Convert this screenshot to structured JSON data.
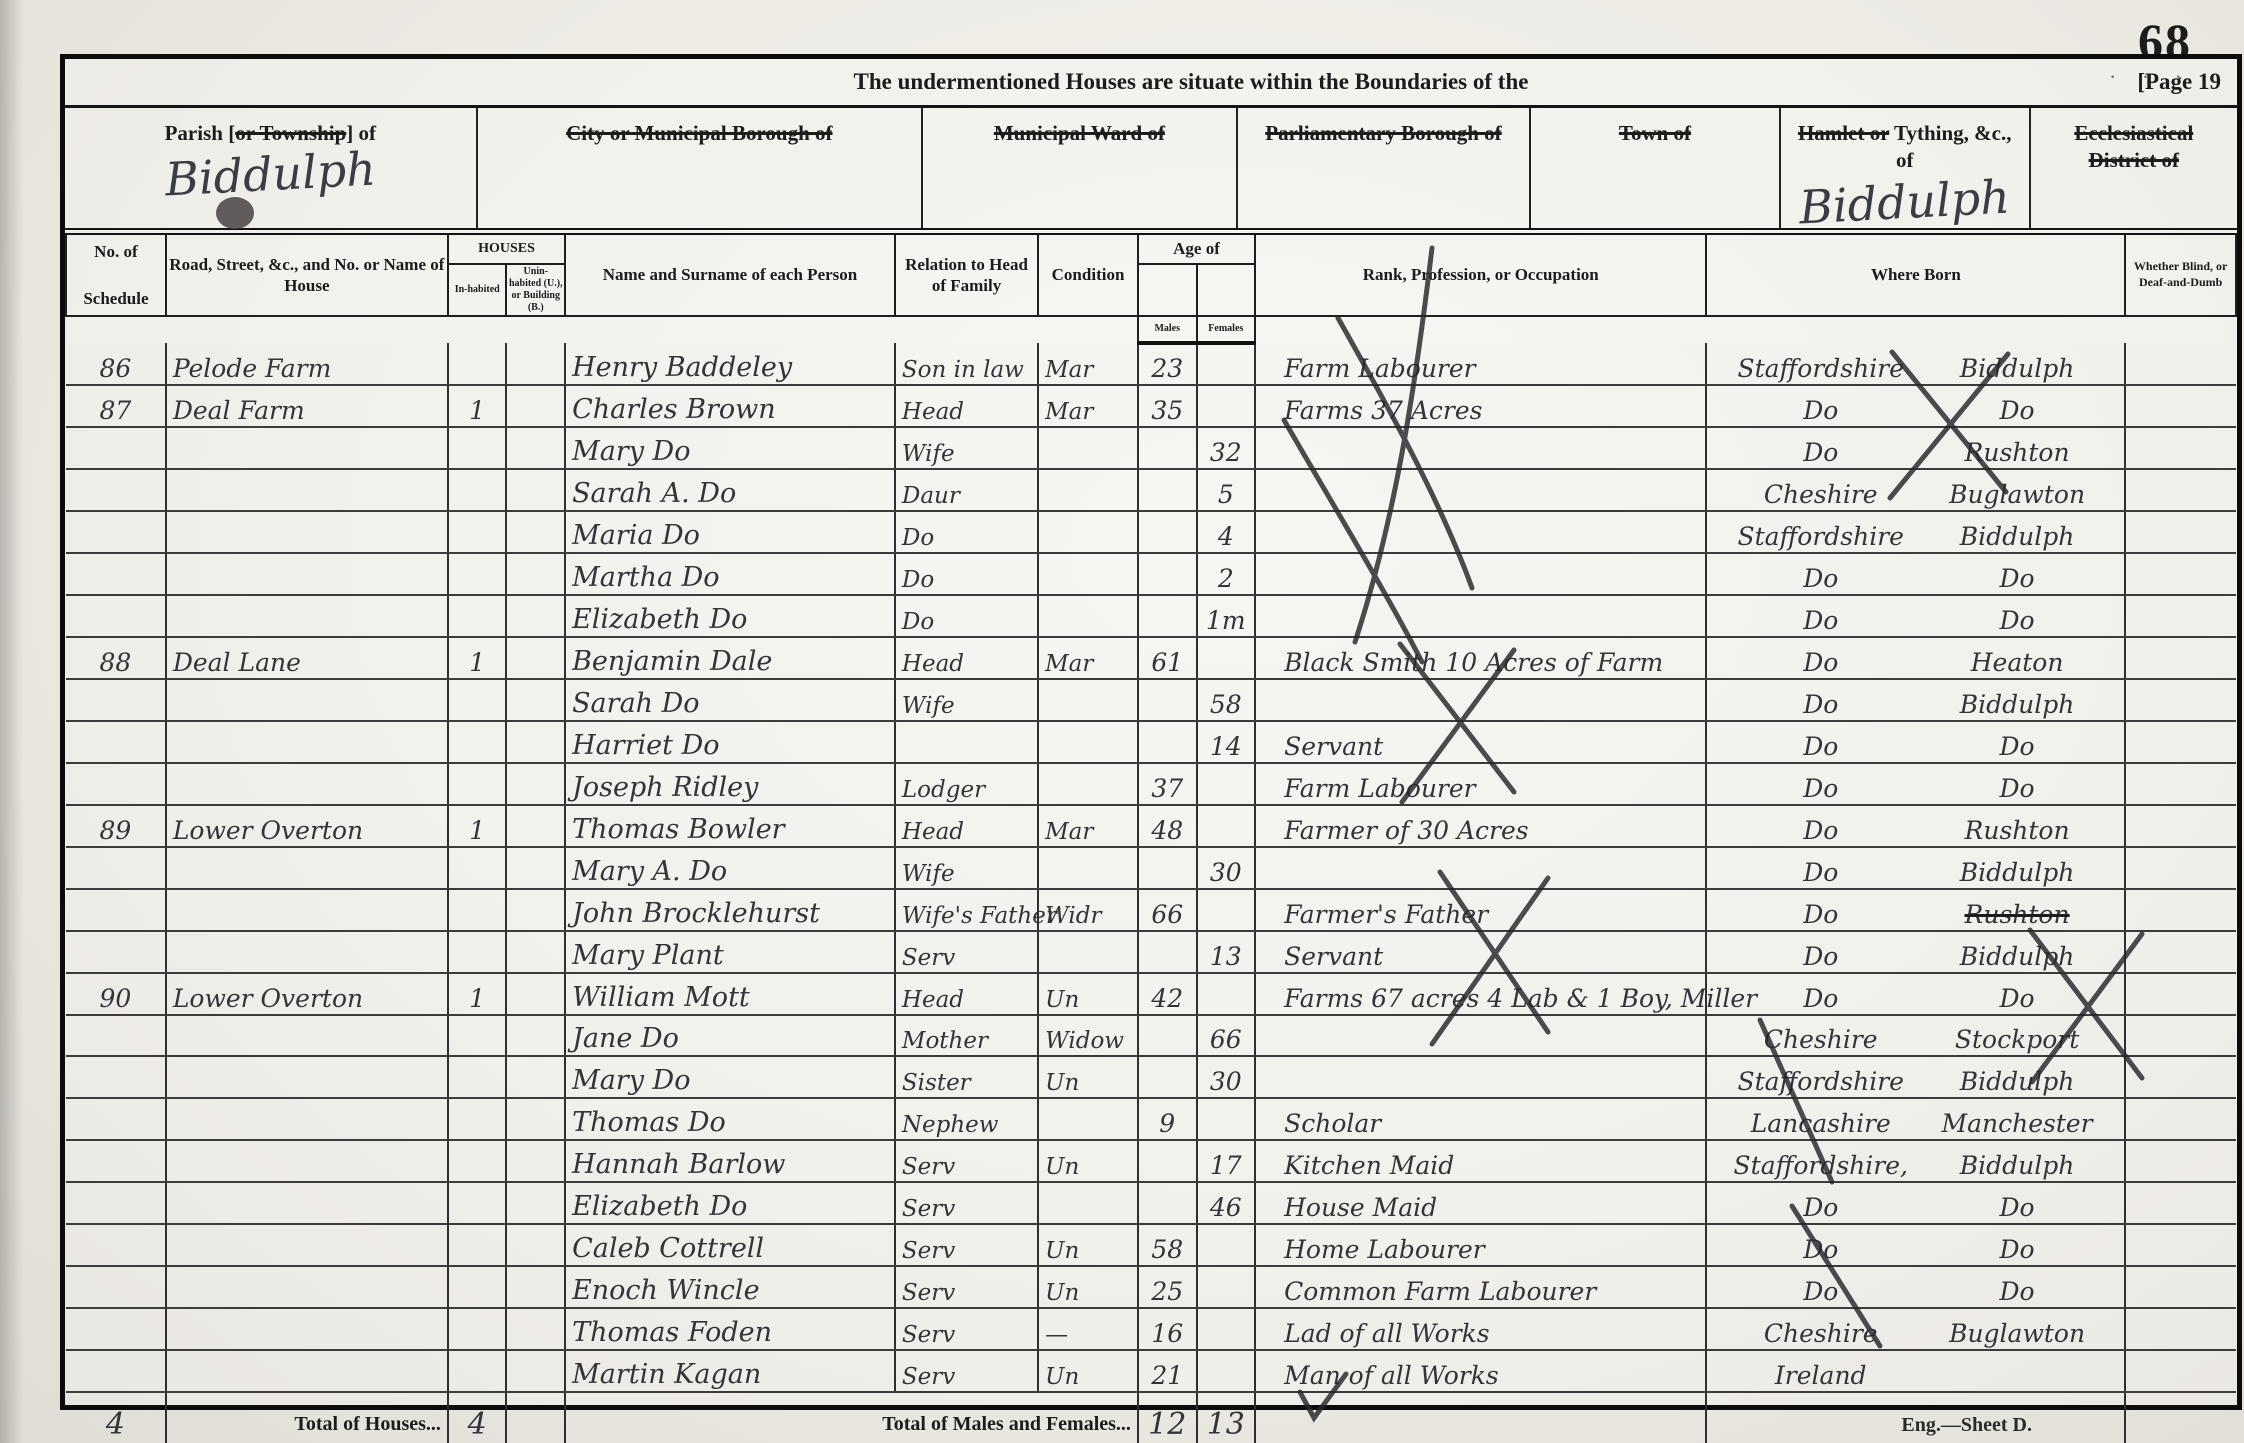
{
  "page": {
    "page_number": "68",
    "dots": "· · ·",
    "page_label": "[Page 19",
    "boundary_heading": "The undermentioned Houses are situate within the Boundaries of the",
    "footer": "Eng.—Sheet D."
  },
  "location_header": {
    "columns": [
      {
        "parts": [
          {
            "text": "Parish [",
            "struck": false
          },
          {
            "text": "or Township",
            "struck": true
          },
          {
            "text": "] of",
            "struck": false
          }
        ],
        "value": "Biddulph"
      },
      {
        "parts": [
          {
            "text": "City or Municipal Borough of",
            "struck": true
          }
        ],
        "value": ""
      },
      {
        "parts": [
          {
            "text": "Municipal Ward of",
            "struck": true
          }
        ],
        "value": ""
      },
      {
        "parts": [
          {
            "text": "Parliamentary Borough of",
            "struck": true
          }
        ],
        "value": ""
      },
      {
        "parts": [
          {
            "text": "Town of",
            "struck": true
          }
        ],
        "value": ""
      },
      {
        "parts": [
          {
            "text": "Hamlet or",
            "struck": true
          },
          {
            "text": " Tything, &c., of",
            "struck": false
          }
        ],
        "value": "Biddulph"
      },
      {
        "parts": [
          {
            "text": "Ecclesiastical District of",
            "struck": true
          }
        ],
        "value": ""
      }
    ]
  },
  "headers": {
    "schedule_top": "No. of",
    "schedule_bottom": "Schedule",
    "road": "Road, Street, &c., and No. or Name of House",
    "houses_group": "HOUSES",
    "inhabited": "In-habited",
    "uninhabited": "Unin-habited (U.), or Building (B.)",
    "name": "Name and Surname of each Person",
    "relation": "Relation to Head of Family",
    "condition": "Condition",
    "age_group": "Age of",
    "males": "Males",
    "females": "Females",
    "occupation": "Rank, Profession, or Occupation",
    "born": "Where Born",
    "blind": "Whether Blind, or Deaf-and-Dumb"
  },
  "rows": [
    {
      "sched": "86",
      "road": "Pelode Farm",
      "inh": "",
      "name": "Henry Baddeley",
      "rel": "Son in law",
      "cond": "Mar",
      "m": "23",
      "f": "",
      "occ": "Farm Labourer",
      "bc": "Staffordshire",
      "bp": "Biddulph"
    },
    {
      "sched": "87",
      "road": "Deal Farm",
      "inh": "1",
      "name": "Charles Brown",
      "rel": "Head",
      "cond": "Mar",
      "m": "35",
      "f": "",
      "occ": "Farms 37 Acres",
      "bc": "Do",
      "bp": "Do"
    },
    {
      "sched": "",
      "road": "",
      "inh": "",
      "name": "Mary Do",
      "rel": "Wife",
      "cond": "",
      "m": "",
      "f": "32",
      "occ": "",
      "bc": "Do",
      "bp": "Rushton"
    },
    {
      "sched": "",
      "road": "",
      "inh": "",
      "name": "Sarah A. Do",
      "rel": "Daur",
      "cond": "",
      "m": "",
      "f": "5",
      "occ": "",
      "bc": "Cheshire",
      "bp": "Buglawton"
    },
    {
      "sched": "",
      "road": "",
      "inh": "",
      "name": "Maria Do",
      "rel": "Do",
      "cond": "",
      "m": "",
      "f": "4",
      "occ": "",
      "bc": "Staffordshire",
      "bp": "Biddulph"
    },
    {
      "sched": "",
      "road": "",
      "inh": "",
      "name": "Martha Do",
      "rel": "Do",
      "cond": "",
      "m": "",
      "f": "2",
      "occ": "",
      "bc": "Do",
      "bp": "Do"
    },
    {
      "sched": "",
      "road": "",
      "inh": "",
      "name": "Elizabeth Do",
      "rel": "Do",
      "cond": "",
      "m": "",
      "f": "1m",
      "occ": "",
      "bc": "Do",
      "bp": "Do"
    },
    {
      "sched": "88",
      "road": "Deal Lane",
      "inh": "1",
      "name": "Benjamin Dale",
      "rel": "Head",
      "cond": "Mar",
      "m": "61",
      "f": "",
      "occ": "Black Smith 10 Acres of Farm",
      "bc": "Do",
      "bp": "Heaton"
    },
    {
      "sched": "",
      "road": "",
      "inh": "",
      "name": "Sarah Do",
      "rel": "Wife",
      "cond": "",
      "m": "",
      "f": "58",
      "occ": "",
      "bc": "Do",
      "bp": "Biddulph"
    },
    {
      "sched": "",
      "road": "",
      "inh": "",
      "name": "Harriet Do",
      "rel": "",
      "cond": "",
      "m": "",
      "f": "14",
      "occ": "Servant",
      "bc": "Do",
      "bp": "Do"
    },
    {
      "sched": "",
      "road": "",
      "inh": "",
      "name": "Joseph Ridley",
      "rel": "Lodger",
      "cond": "",
      "m": "37",
      "f": "",
      "occ": "Farm Labourer",
      "bc": "Do",
      "bp": "Do"
    },
    {
      "sched": "89",
      "road": "Lower Overton",
      "inh": "1",
      "name": "Thomas Bowler",
      "rel": "Head",
      "cond": "Mar",
      "m": "48",
      "f": "",
      "occ": "Farmer of 30 Acres",
      "bc": "Do",
      "bp": "Rushton"
    },
    {
      "sched": "",
      "road": "",
      "inh": "",
      "name": "Mary A. Do",
      "rel": "Wife",
      "cond": "",
      "m": "",
      "f": "30",
      "occ": "",
      "bc": "Do",
      "bp": "Biddulph"
    },
    {
      "sched": "",
      "road": "",
      "inh": "",
      "name": "John Brocklehurst",
      "rel": "Wife's Father",
      "cond": "Widr",
      "m": "66",
      "f": "",
      "occ": "Farmer's Father",
      "bc": "Do",
      "bp": "Rushton",
      "bp_struck": true
    },
    {
      "sched": "",
      "road": "",
      "inh": "",
      "name": "Mary Plant",
      "rel": "Serv",
      "cond": "",
      "m": "",
      "f": "13",
      "occ": "Servant",
      "bc": "Do",
      "bp": "Biddulph"
    },
    {
      "sched": "90",
      "road": "Lower Overton",
      "inh": "1",
      "name": "William Mott",
      "rel": "Head",
      "cond": "Un",
      "m": "42",
      "f": "",
      "occ": "Farms 67 acres 4 Lab & 1 Boy, Miller",
      "bc": "Do",
      "bp": "Do"
    },
    {
      "sched": "",
      "road": "",
      "inh": "",
      "name": "Jane Do",
      "rel": "Mother",
      "cond": "Widow",
      "m": "",
      "f": "66",
      "occ": "",
      "bc": "Cheshire",
      "bp": "Stockport"
    },
    {
      "sched": "",
      "road": "",
      "inh": "",
      "name": "Mary Do",
      "rel": "Sister",
      "cond": "Un",
      "m": "",
      "f": "30",
      "occ": "",
      "bc": "Staffordshire",
      "bp": "Biddulph"
    },
    {
      "sched": "",
      "road": "",
      "inh": "",
      "name": "Thomas Do",
      "rel": "Nephew",
      "cond": "",
      "m": "9",
      "f": "",
      "occ": "Scholar",
      "bc": "Lancashire",
      "bp": "Manchester"
    },
    {
      "sched": "",
      "road": "",
      "inh": "",
      "name": "Hannah Barlow",
      "rel": "Serv",
      "cond": "Un",
      "m": "",
      "f": "17",
      "occ": "Kitchen Maid",
      "bc": "Staffordshire,",
      "bp": "Biddulph"
    },
    {
      "sched": "",
      "road": "",
      "inh": "",
      "name": "Elizabeth Do",
      "rel": "Serv",
      "cond": "",
      "m": "",
      "f": "46",
      "occ": "House Maid",
      "bc": "Do",
      "bp": "Do"
    },
    {
      "sched": "",
      "road": "",
      "inh": "",
      "name": "Caleb Cottrell",
      "rel": "Serv",
      "cond": "Un",
      "m": "58",
      "f": "",
      "occ": "Home Labourer",
      "bc": "Do",
      "bp": "Do"
    },
    {
      "sched": "",
      "road": "",
      "inh": "",
      "name": "Enoch Wincle",
      "rel": "Serv",
      "cond": "Un",
      "m": "25",
      "f": "",
      "occ": "Common Farm Labourer",
      "bc": "Do",
      "bp": "Do"
    },
    {
      "sched": "",
      "road": "",
      "inh": "",
      "name": "Thomas Foden",
      "rel": "Serv",
      "cond": "—",
      "m": "16",
      "f": "",
      "occ": "Lad of all Works",
      "bc": "Cheshire",
      "bp": "Buglawton"
    },
    {
      "sched": "",
      "road": "",
      "inh": "",
      "name": "Martin Kagan",
      "rel": "Serv",
      "cond": "Un",
      "m": "21",
      "f": "",
      "occ": "Man of all Works",
      "bc": "Ireland",
      "bp": ""
    }
  ],
  "totals": {
    "schedule_value": "4",
    "houses_label": "Total of Houses...",
    "houses_value": "4",
    "males_females_label": "Total of Males and Females...",
    "males_value": "12",
    "females_value": "13"
  }
}
